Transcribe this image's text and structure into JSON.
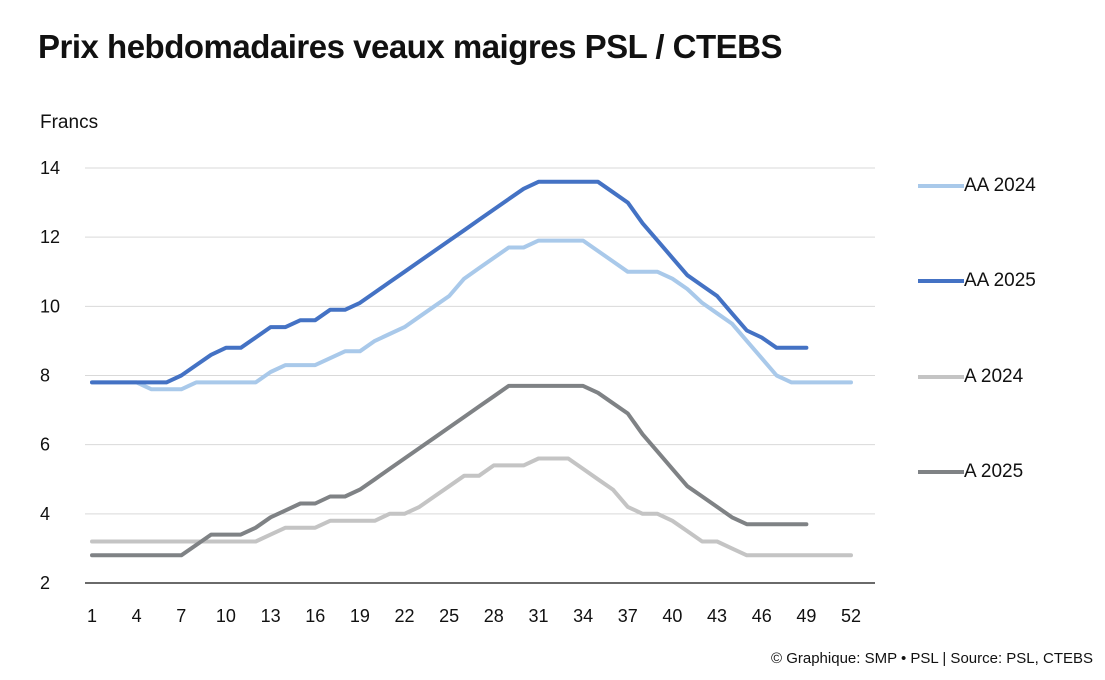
{
  "title": "Prix hebdomadaires veaux maigres PSL / CTEBS",
  "source": "© Graphique: SMP • PSL | Source: PSL, CTEBS",
  "chart_data": {
    "type": "line",
    "ylabel": "Francs",
    "ylim": [
      2,
      14
    ],
    "yticks": [
      2,
      4,
      6,
      8,
      10,
      12,
      14
    ],
    "xlim": [
      1,
      52
    ],
    "xticks": [
      1,
      4,
      7,
      10,
      13,
      16,
      19,
      22,
      25,
      28,
      31,
      34,
      37,
      40,
      43,
      46,
      49,
      52
    ],
    "grid": "horizontal",
    "legend_position": "right",
    "series": [
      {
        "name": "AA 2024",
        "color": "#a9c9ea",
        "x": [
          1,
          2,
          3,
          4,
          5,
          6,
          7,
          8,
          9,
          10,
          11,
          12,
          13,
          14,
          15,
          16,
          17,
          18,
          19,
          20,
          21,
          22,
          23,
          24,
          25,
          26,
          27,
          28,
          29,
          30,
          31,
          32,
          33,
          34,
          35,
          36,
          37,
          38,
          39,
          40,
          41,
          42,
          43,
          44,
          45,
          46,
          47,
          48,
          49,
          50,
          51,
          52
        ],
        "values": [
          7.8,
          7.8,
          7.8,
          7.8,
          7.6,
          7.6,
          7.6,
          7.8,
          7.8,
          7.8,
          7.8,
          7.8,
          8.1,
          8.3,
          8.3,
          8.3,
          8.5,
          8.7,
          8.7,
          9.0,
          9.2,
          9.4,
          9.7,
          10.0,
          10.3,
          10.8,
          11.1,
          11.4,
          11.7,
          11.7,
          11.9,
          11.9,
          11.9,
          11.9,
          11.6,
          11.3,
          11.0,
          11.0,
          11.0,
          10.8,
          10.5,
          10.1,
          9.8,
          9.5,
          9.0,
          8.5,
          8.0,
          7.8,
          7.8,
          7.8,
          7.8,
          7.8
        ]
      },
      {
        "name": "AA 2025",
        "color": "#4472c4",
        "x": [
          1,
          2,
          3,
          4,
          5,
          6,
          7,
          8,
          9,
          10,
          11,
          12,
          13,
          14,
          15,
          16,
          17,
          18,
          19,
          20,
          21,
          22,
          23,
          24,
          25,
          26,
          27,
          28,
          29,
          30,
          31,
          32,
          33,
          34,
          35,
          36,
          37,
          38,
          39,
          40,
          41,
          42,
          43,
          44,
          45,
          46,
          47,
          48,
          49
        ],
        "values": [
          7.8,
          7.8,
          7.8,
          7.8,
          7.8,
          7.8,
          8.0,
          8.3,
          8.6,
          8.8,
          8.8,
          9.1,
          9.4,
          9.4,
          9.6,
          9.6,
          9.9,
          9.9,
          10.1,
          10.4,
          10.7,
          11.0,
          11.3,
          11.6,
          11.9,
          12.2,
          12.5,
          12.8,
          13.1,
          13.4,
          13.6,
          13.6,
          13.6,
          13.6,
          13.6,
          13.3,
          13.0,
          12.4,
          11.9,
          11.4,
          10.9,
          10.6,
          10.3,
          9.8,
          9.3,
          9.1,
          8.8,
          8.8,
          8.8
        ]
      },
      {
        "name": "A 2024",
        "color": "#c4c4c4",
        "x": [
          1,
          2,
          3,
          4,
          5,
          6,
          7,
          8,
          9,
          10,
          11,
          12,
          13,
          14,
          15,
          16,
          17,
          18,
          19,
          20,
          21,
          22,
          23,
          24,
          25,
          26,
          27,
          28,
          29,
          30,
          31,
          32,
          33,
          34,
          35,
          36,
          37,
          38,
          39,
          40,
          41,
          42,
          43,
          44,
          45,
          46,
          47,
          48,
          49,
          50,
          51,
          52
        ],
        "values": [
          3.2,
          3.2,
          3.2,
          3.2,
          3.2,
          3.2,
          3.2,
          3.2,
          3.2,
          3.2,
          3.2,
          3.2,
          3.4,
          3.6,
          3.6,
          3.6,
          3.8,
          3.8,
          3.8,
          3.8,
          4.0,
          4.0,
          4.2,
          4.5,
          4.8,
          5.1,
          5.1,
          5.4,
          5.4,
          5.4,
          5.6,
          5.6,
          5.6,
          5.3,
          5.0,
          4.7,
          4.2,
          4.0,
          4.0,
          3.8,
          3.5,
          3.2,
          3.2,
          3.0,
          2.8,
          2.8,
          2.8,
          2.8,
          2.8,
          2.8,
          2.8,
          2.8
        ]
      },
      {
        "name": "A 2025",
        "color": "#7f8285",
        "x": [
          1,
          2,
          3,
          4,
          5,
          6,
          7,
          8,
          9,
          10,
          11,
          12,
          13,
          14,
          15,
          16,
          17,
          18,
          19,
          20,
          21,
          22,
          23,
          24,
          25,
          26,
          27,
          28,
          29,
          30,
          31,
          32,
          33,
          34,
          35,
          36,
          37,
          38,
          39,
          40,
          41,
          42,
          43,
          44,
          45,
          46,
          47,
          48,
          49
        ],
        "values": [
          2.8,
          2.8,
          2.8,
          2.8,
          2.8,
          2.8,
          2.8,
          3.1,
          3.4,
          3.4,
          3.4,
          3.6,
          3.9,
          4.1,
          4.3,
          4.3,
          4.5,
          4.5,
          4.7,
          5.0,
          5.3,
          5.6,
          5.9,
          6.2,
          6.5,
          6.8,
          7.1,
          7.4,
          7.7,
          7.7,
          7.7,
          7.7,
          7.7,
          7.7,
          7.5,
          7.2,
          6.9,
          6.3,
          5.8,
          5.3,
          4.8,
          4.5,
          4.2,
          3.9,
          3.7,
          3.7,
          3.7,
          3.7,
          3.7
        ]
      }
    ]
  }
}
